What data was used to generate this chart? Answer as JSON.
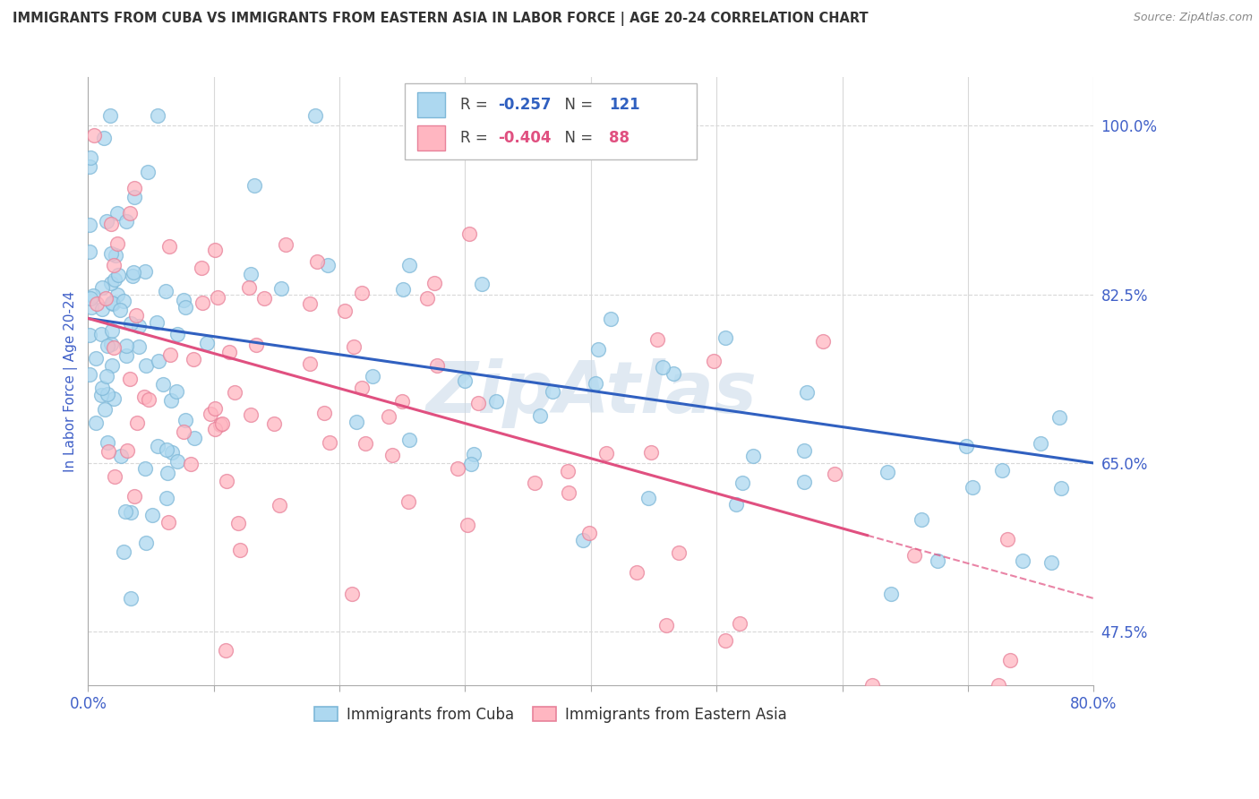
{
  "title": "IMMIGRANTS FROM CUBA VS IMMIGRANTS FROM EASTERN ASIA IN LABOR FORCE | AGE 20-24 CORRELATION CHART",
  "source": "Source: ZipAtlas.com",
  "ylabel": "In Labor Force | Age 20-24",
  "xlim": [
    0.0,
    0.8
  ],
  "ylim": [
    0.42,
    1.05
  ],
  "yticks_right": [
    1.0,
    0.825,
    0.65,
    0.475
  ],
  "yticks_right_labels": [
    "100.0%",
    "82.5%",
    "65.0%",
    "47.5%"
  ],
  "cuba_color": "#ADD8F0",
  "cuba_edge_color": "#7EB8D8",
  "eastern_asia_color": "#FFB6C1",
  "eastern_asia_edge_color": "#E8829A",
  "trend_cuba_color": "#3060C0",
  "trend_eastern_color": "#E05080",
  "R_cuba": -0.257,
  "N_cuba": 121,
  "R_eastern": -0.404,
  "N_eastern": 88,
  "watermark": "ZipAtlas",
  "background_color": "#ffffff",
  "grid_color": "#d8d8d8",
  "title_color": "#333333",
  "axis_label_color": "#4060C8"
}
